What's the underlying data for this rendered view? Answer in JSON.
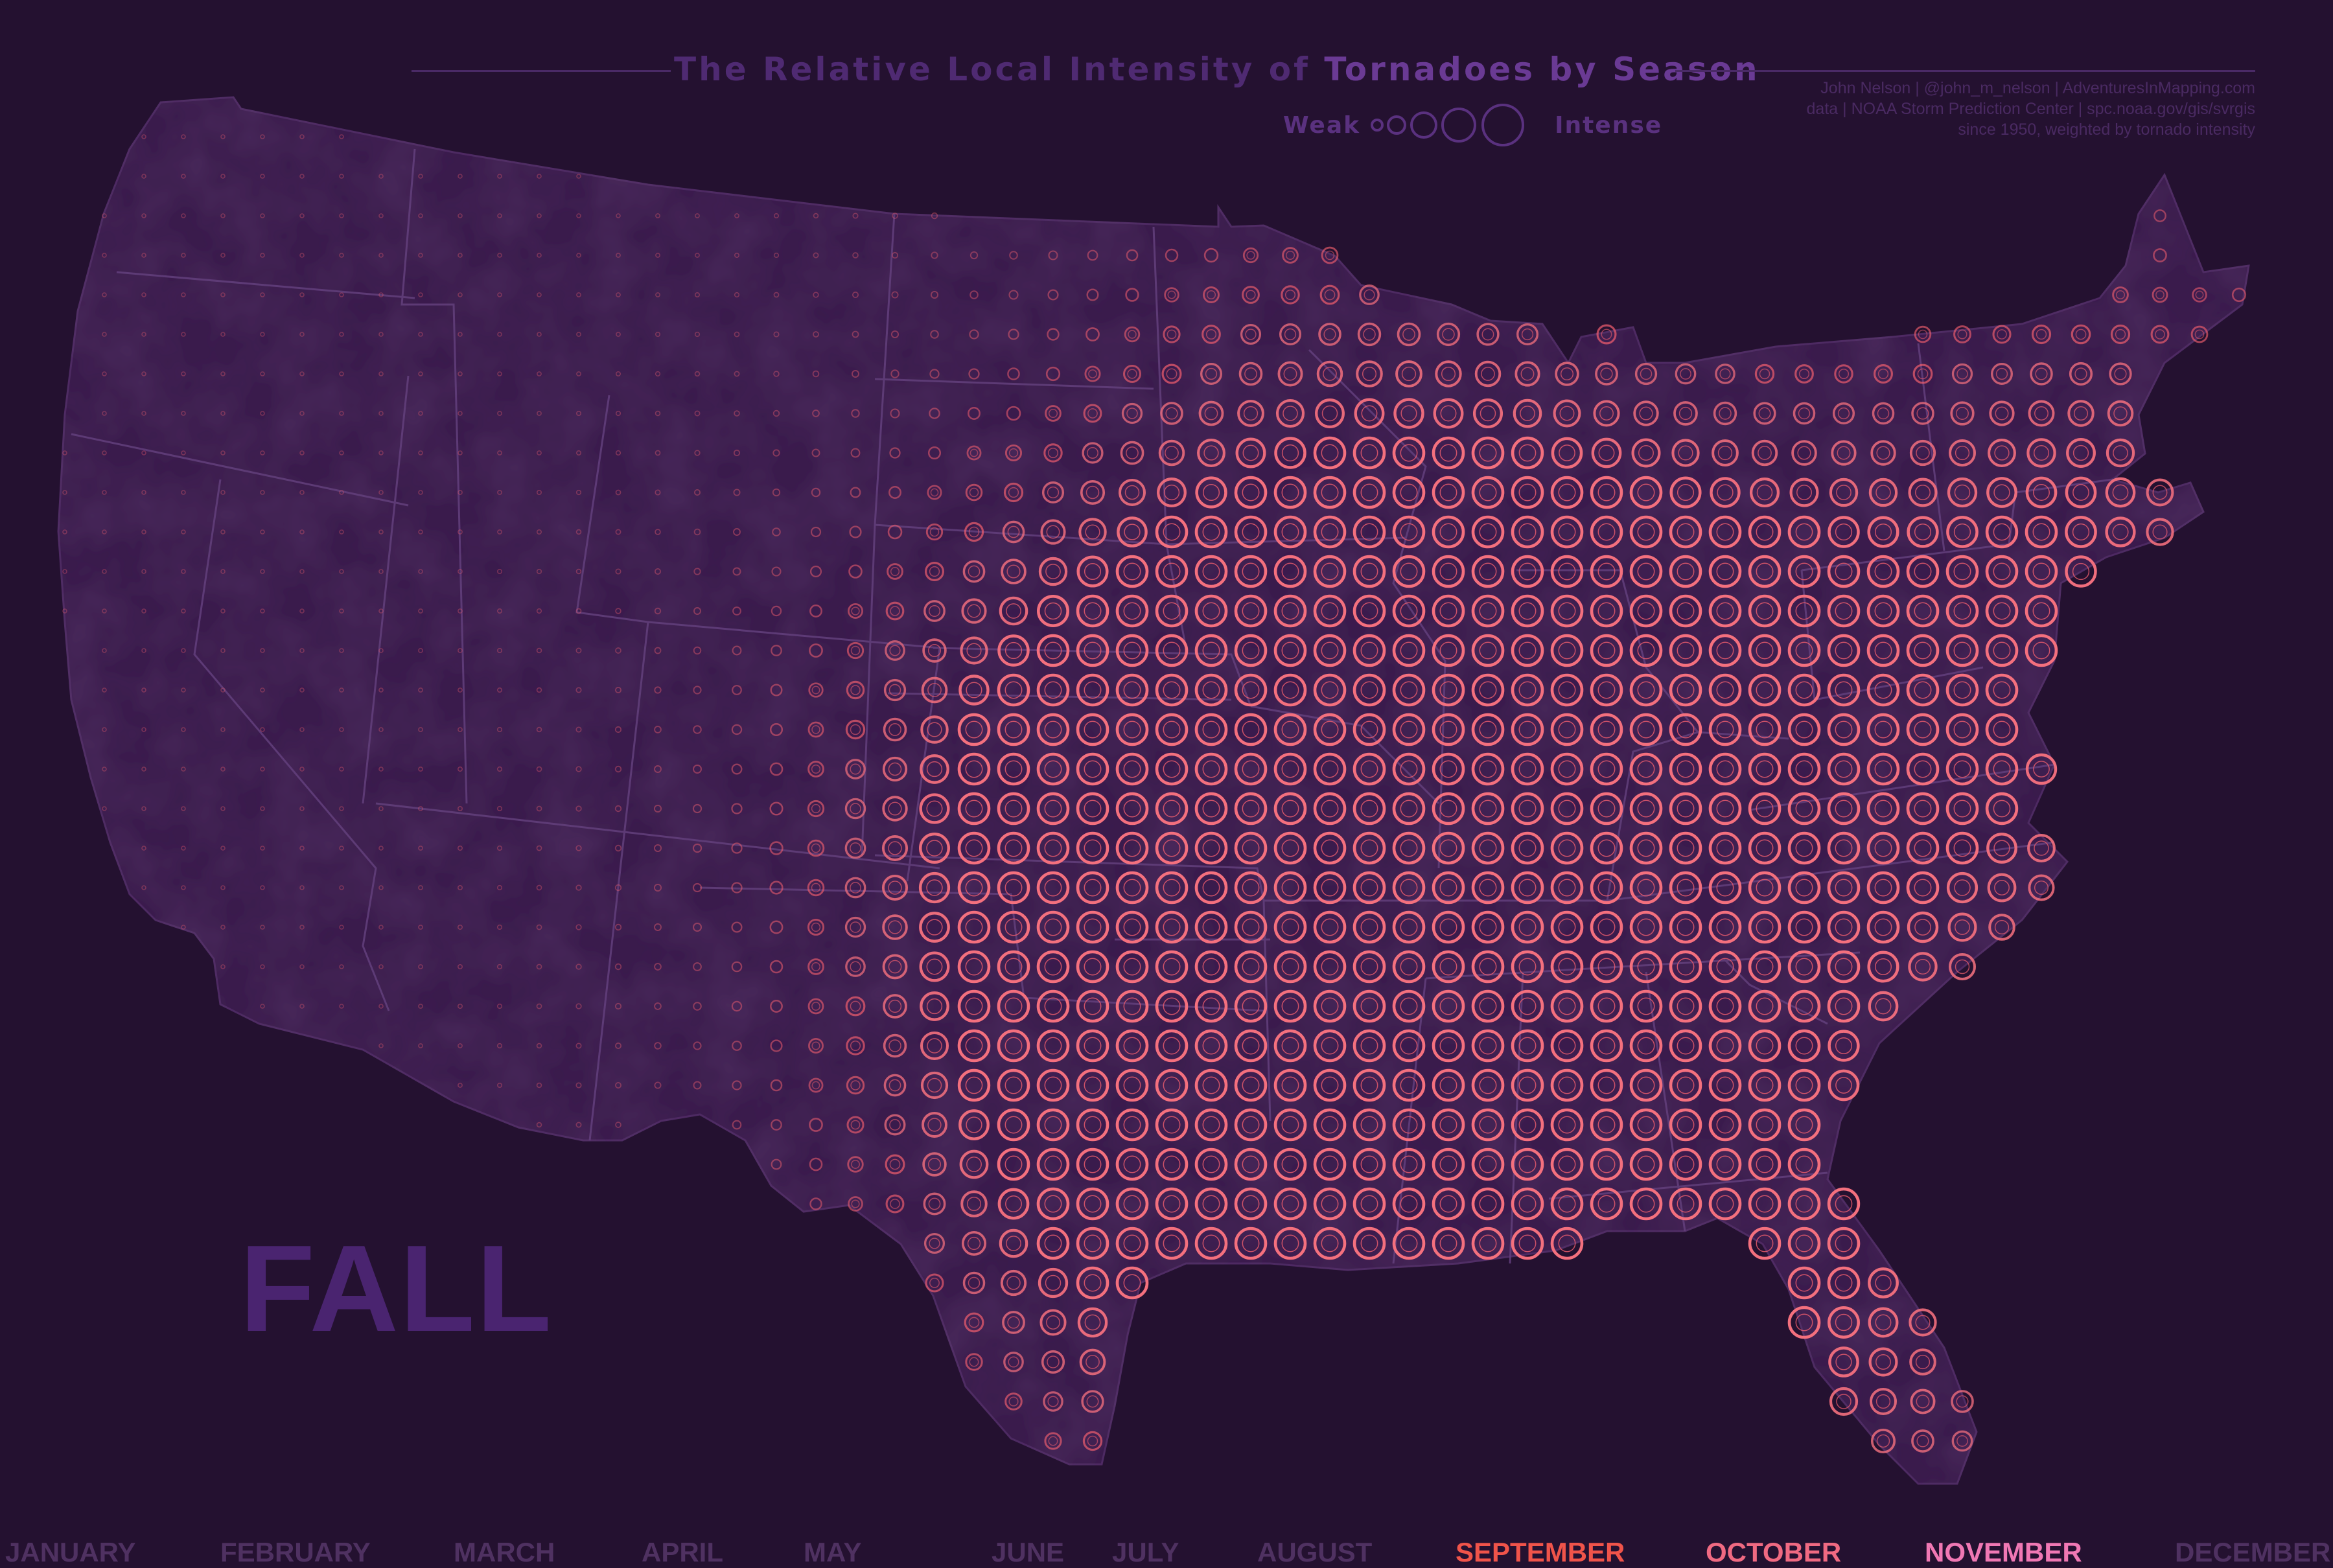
{
  "title": {
    "part1": "The Relative Local Intensity of",
    "part2": "Tornadoes by Season"
  },
  "legend": {
    "weak_label": "Weak",
    "intense_label": "Intense"
  },
  "credit": {
    "line1": "John Nelson | @john_m_nelson | AdventuresInMapping.com",
    "line2": "data | NOAA Storm Prediction Center | spc.noaa.gov/gis/svrgis",
    "line3": "since 1950, weighted by tornado intensity"
  },
  "season_label": "FALL",
  "months": [
    {
      "label": "JANUARY",
      "color": "#5a3a6e",
      "active": false
    },
    {
      "label": "FEBRUARY",
      "color": "#5a3a6e",
      "active": false
    },
    {
      "label": "MARCH",
      "color": "#5a3a6e",
      "active": false
    },
    {
      "label": "APRIL",
      "color": "#5a3a6e",
      "active": false
    },
    {
      "label": "MAY",
      "color": "#5a3a6e",
      "active": false
    },
    {
      "label": "JUNE",
      "color": "#5a3a6e",
      "active": false
    },
    {
      "label": "JULY",
      "color": "#5a3a6e",
      "active": false
    },
    {
      "label": "AUGUST",
      "color": "#5a3a6e",
      "active": false
    },
    {
      "label": "SEPTEMBER",
      "color": "#f0544a",
      "active": true
    },
    {
      "label": "OCTOBER",
      "color": "#f06a82",
      "active": true
    },
    {
      "label": "NOVEMBER",
      "color": "#f078b4",
      "active": true
    },
    {
      "label": "DECEMBER",
      "color": "#5a3a6e",
      "active": false
    }
  ],
  "colors": {
    "background": "#241130",
    "land": "#3a1b4c",
    "state_border": "#5c3a76",
    "symbol": "#f25f6e",
    "symbol_strong": "#f4707e"
  }
}
